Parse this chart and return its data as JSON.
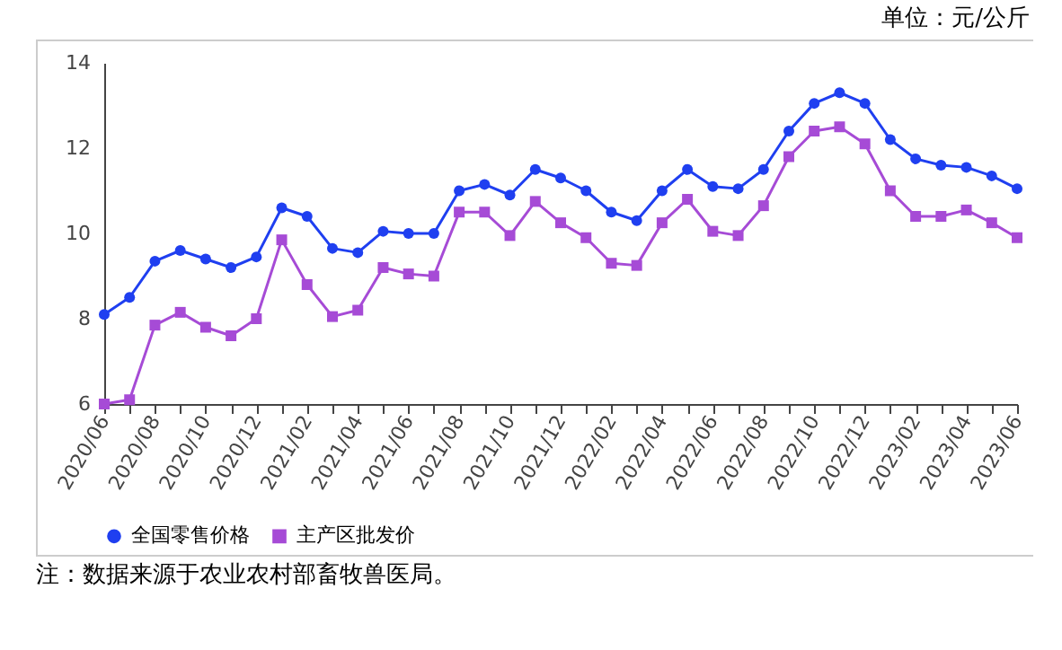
{
  "chart_data": {
    "type": "line",
    "categories": [
      "2020/06",
      null,
      "2020/08",
      null,
      "2020/10",
      null,
      "2020/12",
      null,
      "2021/02",
      null,
      "2021/04",
      null,
      "2021/06",
      null,
      "2021/08",
      null,
      "2021/10",
      null,
      "2021/12",
      null,
      "2022/02",
      null,
      "2022/04",
      null,
      "2022/06",
      null,
      "2022/08",
      null,
      "2022/10",
      null,
      "2022/12",
      null,
      "2023/02",
      null,
      "2023/04",
      null,
      "2023/06"
    ],
    "series": [
      {
        "name": "全国零售价格",
        "color": "#1f3ff0",
        "marker": "circle",
        "values": [
          8.1,
          8.5,
          9.35,
          9.6,
          9.4,
          9.2,
          9.45,
          10.6,
          10.4,
          9.65,
          9.55,
          10.05,
          10.0,
          10.0,
          11.0,
          11.15,
          10.9,
          11.5,
          11.3,
          11.0,
          10.5,
          10.3,
          11.0,
          11.5,
          11.1,
          11.05,
          11.5,
          12.4,
          13.05,
          13.3,
          13.05,
          12.2,
          11.75,
          11.6,
          11.55,
          11.35,
          11.05
        ]
      },
      {
        "name": "主产区批发价",
        "color": "#a64bd6",
        "marker": "square",
        "values": [
          6.0,
          6.1,
          7.85,
          8.15,
          7.8,
          7.6,
          8.0,
          9.85,
          8.8,
          8.05,
          8.2,
          9.2,
          9.05,
          9.0,
          10.5,
          10.5,
          9.95,
          10.75,
          10.25,
          9.9,
          9.3,
          9.25,
          10.25,
          10.8,
          10.05,
          9.95,
          10.65,
          11.8,
          12.4,
          12.5,
          12.1,
          11.0,
          10.4,
          10.4,
          10.55,
          10.25,
          9.9
        ]
      }
    ],
    "ylim": [
      6,
      14
    ],
    "yticks": [
      6,
      8,
      10,
      12,
      14
    ],
    "grid": false,
    "legend": "bottom",
    "line_style": "solid",
    "annotations": [
      "单位：元/公斤",
      "注：数据来源于农业农村部畜牧兽医局。"
    ]
  }
}
